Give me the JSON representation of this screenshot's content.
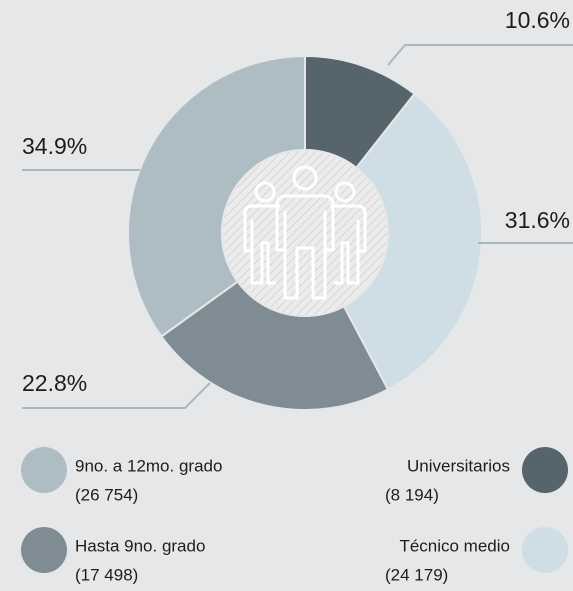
{
  "chart_data": {
    "type": "pie",
    "donut": true,
    "series": [
      {
        "name": "Universitarios",
        "count_label": "(8 194)",
        "color": "#56646b"
      },
      {
        "name": "Técnico medio",
        "count_label": "(24 179)",
        "color": "#cfdde5"
      },
      {
        "name": "Hasta 9no. grado",
        "count_label": "(17 498)",
        "color": "#7f8c93"
      },
      {
        "name": "9no. a 12mo. grado",
        "count_label": "(26 754)",
        "color": "#aebcc4"
      }
    ],
    "values": [
      10.6,
      31.6,
      22.8,
      34.9
    ],
    "value_labels": [
      "10.6%",
      "31.6%",
      "22.8%",
      "34.9%"
    ]
  }
}
